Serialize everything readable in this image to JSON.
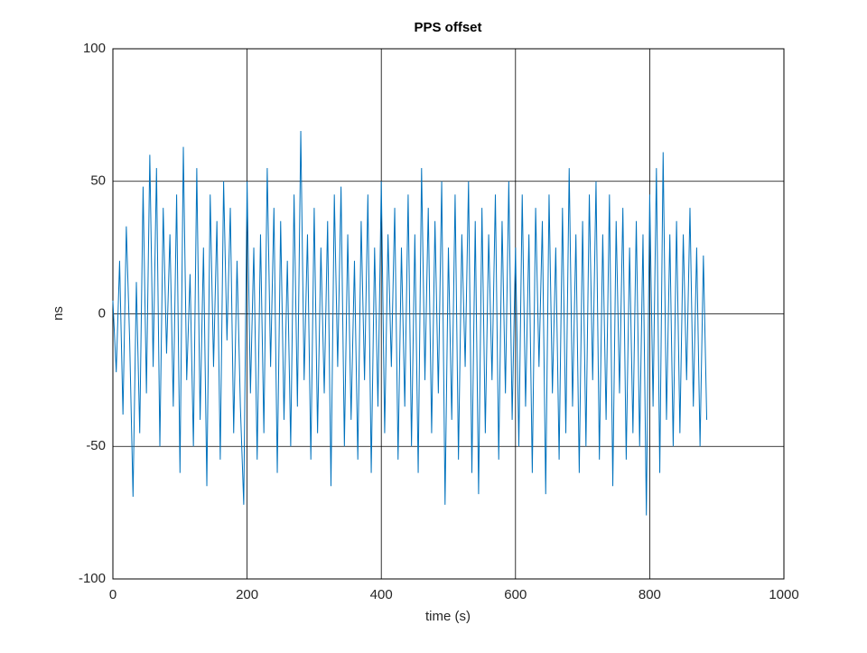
{
  "chart_data": {
    "type": "line",
    "title": "PPS offset",
    "x_label": "time (s)",
    "y_label": "ns",
    "x": [
      0,
      5,
      10,
      15,
      20,
      25,
      30,
      35,
      40,
      45,
      50,
      55,
      60,
      65,
      70,
      75,
      80,
      85,
      90,
      95,
      100,
      105,
      110,
      115,
      120,
      125,
      130,
      135,
      140,
      145,
      150,
      155,
      160,
      165,
      170,
      175,
      180,
      185,
      190,
      195,
      200,
      205,
      210,
      215,
      220,
      225,
      230,
      235,
      240,
      245,
      250,
      255,
      260,
      265,
      270,
      275,
      280,
      285,
      290,
      295,
      300,
      305,
      310,
      315,
      320,
      325,
      330,
      335,
      340,
      345,
      350,
      355,
      360,
      365,
      370,
      375,
      380,
      385,
      390,
      395,
      400,
      405,
      410,
      415,
      420,
      425,
      430,
      435,
      440,
      445,
      450,
      455,
      460,
      465,
      470,
      475,
      480,
      485,
      490,
      495,
      500,
      505,
      510,
      515,
      520,
      525,
      530,
      535,
      540,
      545,
      550,
      555,
      560,
      565,
      570,
      575,
      580,
      585,
      590,
      595,
      600,
      605,
      610,
      615,
      620,
      625,
      630,
      635,
      640,
      645,
      650,
      655,
      660,
      665,
      670,
      675,
      680,
      685,
      690,
      695,
      700,
      705,
      710,
      715,
      720,
      725,
      730,
      735,
      740,
      745,
      750,
      755,
      760,
      765,
      770,
      775,
      780,
      785,
      790,
      795,
      800,
      805,
      810,
      815,
      820,
      825,
      830,
      835,
      840,
      845,
      850,
      855,
      860,
      865,
      870,
      875,
      880,
      885
    ],
    "values": [
      5,
      -22,
      20,
      -38,
      33,
      -10,
      -69,
      12,
      -45,
      48,
      -30,
      60,
      -20,
      55,
      -50,
      40,
      -15,
      30,
      -35,
      45,
      -60,
      63,
      -25,
      15,
      -50,
      55,
      -40,
      25,
      -65,
      45,
      -20,
      35,
      -55,
      50,
      -10,
      40,
      -45,
      20,
      -35,
      -72,
      50,
      -30,
      25,
      -55,
      30,
      -45,
      55,
      -20,
      40,
      -60,
      35,
      -40,
      20,
      -50,
      45,
      -35,
      69,
      -25,
      30,
      -55,
      40,
      -45,
      25,
      -30,
      35,
      -65,
      45,
      -20,
      48,
      -50,
      30,
      -40,
      20,
      -55,
      35,
      -25,
      45,
      -60,
      25,
      -35,
      50,
      -45,
      30,
      -20,
      40,
      -55,
      25,
      -35,
      45,
      -50,
      30,
      -60,
      55,
      -25,
      40,
      -45,
      35,
      -30,
      50,
      -72,
      25,
      -40,
      45,
      -55,
      30,
      -20,
      50,
      -60,
      35,
      -68,
      40,
      -45,
      30,
      -25,
      45,
      -55,
      35,
      -30,
      50,
      -40,
      25,
      -50,
      45,
      -35,
      30,
      -60,
      40,
      -20,
      35,
      -68,
      45,
      -30,
      25,
      -55,
      40,
      -45,
      55,
      -35,
      30,
      -60,
      35,
      -50,
      45,
      -25,
      50,
      -55,
      30,
      -40,
      45,
      -65,
      35,
      -30,
      40,
      -55,
      25,
      -45,
      35,
      -50,
      30,
      -76,
      45,
      -35,
      55,
      -60,
      61,
      -40,
      30,
      -50,
      35,
      -45,
      30,
      -25,
      40,
      -35,
      25,
      -50,
      22,
      -40
    ],
    "color": "#0072bd",
    "xlim": [
      0,
      1000
    ],
    "xticks": [
      0,
      200,
      400,
      600,
      800,
      1000
    ],
    "ylim": [
      -100,
      100
    ],
    "yticks": [
      -100,
      -50,
      0,
      50,
      100
    ],
    "grid": true
  }
}
